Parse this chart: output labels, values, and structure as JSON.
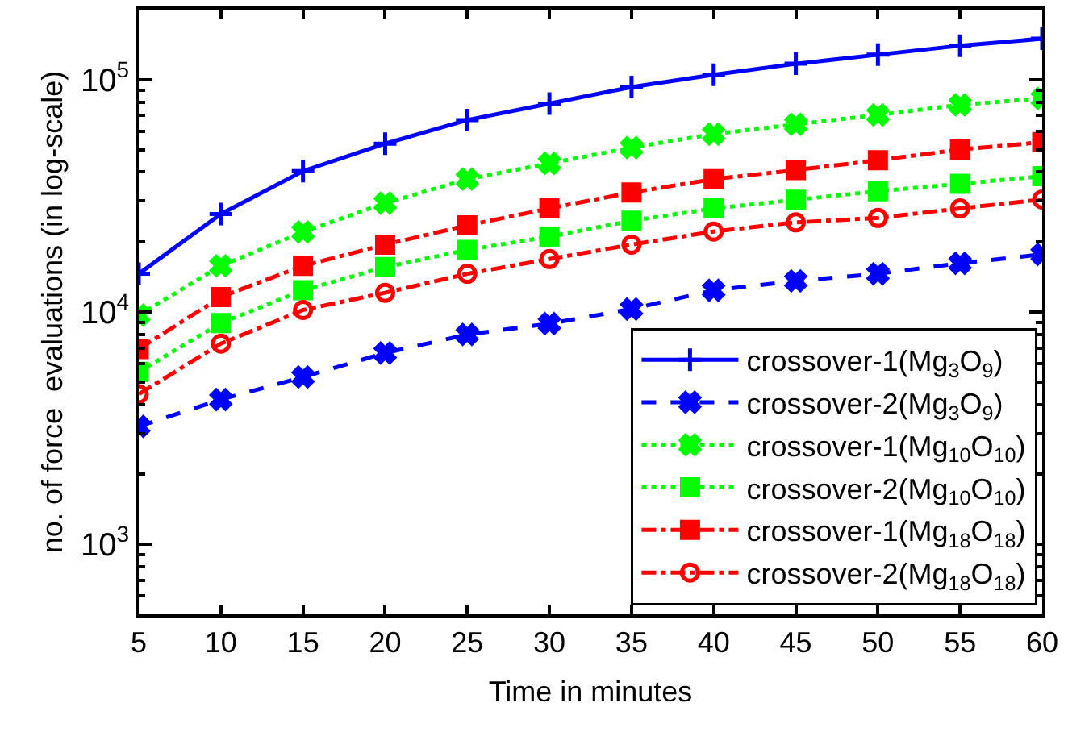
{
  "chart_data": {
    "type": "line",
    "xlabel": "Time in minutes",
    "ylabel": "no. of force  evaluations (in log-scale)",
    "x": [
      5,
      10,
      15,
      20,
      25,
      30,
      35,
      40,
      45,
      50,
      55,
      60
    ],
    "series": [
      {
        "name": "crossover-1(Mg$_{3}$O$_{9}$)",
        "color": "#0000ff",
        "marker": "cross",
        "line_style": "solid",
        "values": [
          14600,
          26400,
          40400,
          53000,
          67000,
          78900,
          92900,
          105000,
          117000,
          128000,
          140000,
          150000
        ]
      },
      {
        "name": "crossover-2(Mg$_{3}$O$_{9}$)",
        "color": "#0000ff",
        "marker": "x",
        "line_style": "dashed",
        "values": [
          3220,
          4200,
          5250,
          6660,
          8000,
          8910,
          10300,
          12400,
          13600,
          14600,
          16200,
          17700
        ]
      },
      {
        "name": "crossover-1(Mg$_{10}$O$_{10}$)",
        "color": "#00ff00",
        "marker": "x",
        "line_style": "dotted",
        "values": [
          9700,
          15800,
          22100,
          29400,
          37300,
          43600,
          51000,
          58300,
          64200,
          70500,
          77900,
          83000
        ]
      },
      {
        "name": "crossover-2(Mg$_{10}$O$_{10}$)",
        "color": "#00ff00",
        "marker": "square",
        "line_style": "dotted",
        "values": [
          5530,
          8960,
          12400,
          15600,
          18500,
          21100,
          24700,
          27900,
          30400,
          33100,
          35600,
          38400
        ]
      },
      {
        "name": "crossover-1(Mg$_{18}$O$_{18}$)",
        "color": "#ff0000",
        "marker": "square",
        "line_style": "dashdot",
        "values": [
          6930,
          11600,
          15800,
          19500,
          23600,
          27900,
          32700,
          37300,
          40800,
          45000,
          50000,
          53800
        ]
      },
      {
        "name": "crossover-2(Mg$_{18}$O$_{18}$)",
        "color": "#ff0000",
        "marker": "circle",
        "line_style": "dashdot",
        "values": [
          4430,
          7310,
          10200,
          12100,
          14600,
          16900,
          19500,
          22200,
          24300,
          25400,
          27900,
          30500
        ]
      }
    ],
    "xlim": [
      5,
      60
    ],
    "xticks": [
      5,
      10,
      15,
      20,
      25,
      30,
      35,
      40,
      45,
      50,
      55,
      60
    ],
    "ylim": [
      500,
      200000
    ],
    "yticks": [
      {
        "value": 1000,
        "label": "10$^{3}$"
      },
      {
        "value": 10000,
        "label": "10$^{4}$"
      },
      {
        "value": 100000,
        "label": "10$^{5}$"
      }
    ],
    "log": "y",
    "legend": "bottom right"
  }
}
